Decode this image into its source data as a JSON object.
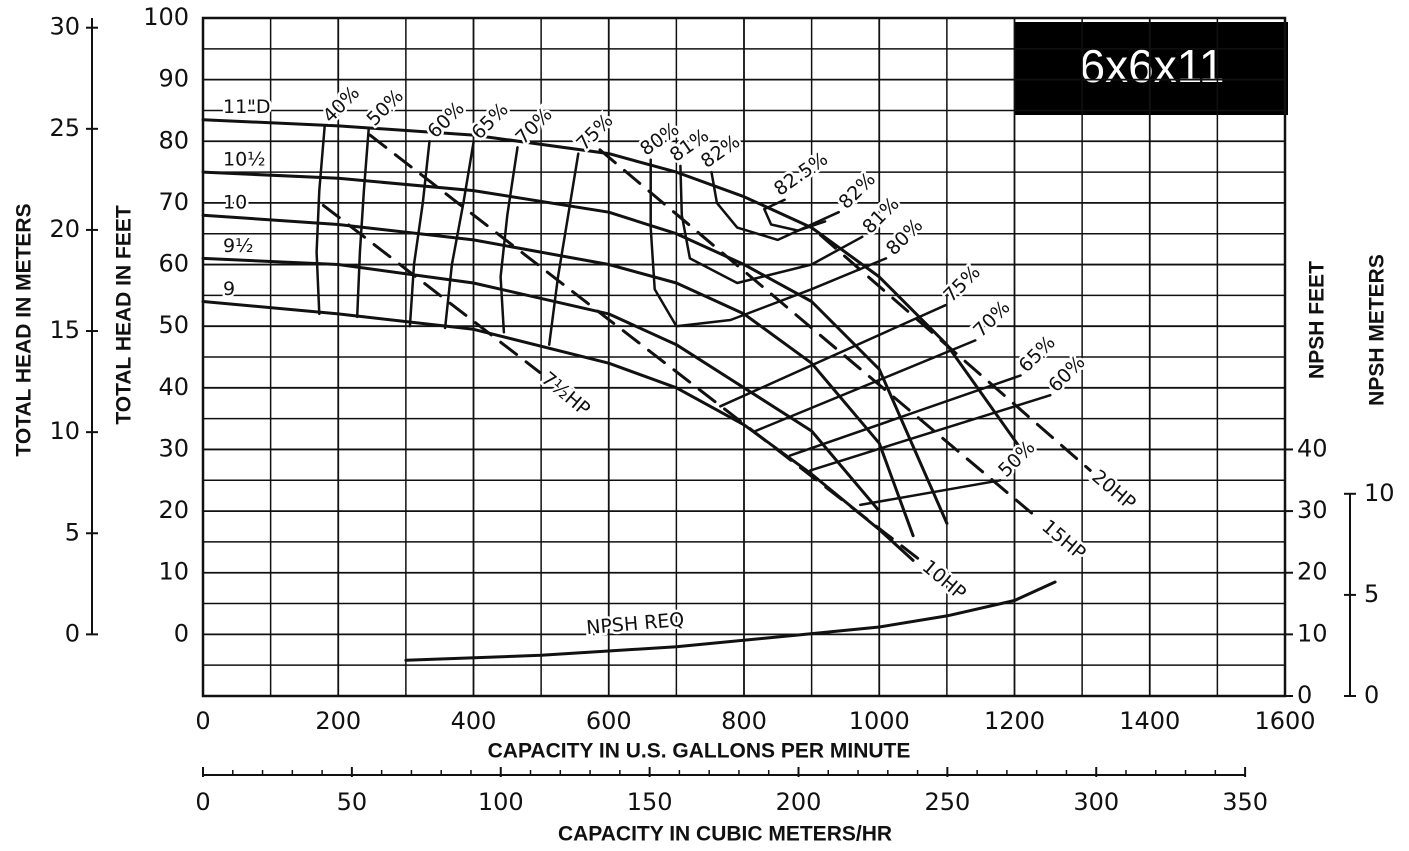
{
  "chart_data": {
    "type": "line",
    "title": "6x6x11",
    "color": "#111111",
    "xlabel": "CAPACITY IN U.S. GALLONS PER MINUTE",
    "ylabel": "TOTAL HEAD IN FEET",
    "xlim": [
      0,
      1600
    ],
    "xticks": [
      0,
      200,
      400,
      600,
      800,
      1000,
      1200,
      1400,
      1600
    ],
    "xgrid": [
      100,
      300,
      500,
      700,
      900,
      1100,
      1300,
      1500
    ],
    "ylim": [
      -10,
      100
    ],
    "yticks": [
      0,
      10,
      20,
      30,
      40,
      50,
      60,
      70,
      80,
      90,
      100
    ],
    "ygrid": [
      -5,
      5,
      15,
      25,
      35,
      45,
      55,
      65,
      75,
      85,
      95
    ],
    "grid": true,
    "y_meters": {
      "label": "TOTAL HEAD IN METERS",
      "lim": [
        -3.048,
        30.48
      ],
      "ticks": [
        0,
        5,
        10,
        15,
        20,
        25,
        30
      ]
    },
    "npsh_feet": {
      "label": "NPSH FEET",
      "lim": [
        0,
        110
      ],
      "ticks": [
        0,
        10,
        20,
        30,
        40
      ]
    },
    "npsh_meters": {
      "label": "NPSH METERS",
      "lim": [
        0,
        33.53
      ],
      "ticks": [
        0,
        5,
        10
      ]
    },
    "x2": {
      "label": "CAPACITY IN CUBIC METERS/HR",
      "lim": [
        0,
        363.4
      ],
      "ticks": [
        0,
        50,
        100,
        150,
        200,
        250,
        300,
        350
      ],
      "minor": [
        10,
        20,
        30,
        40,
        60,
        70,
        80,
        90,
        110,
        120,
        130,
        140,
        160,
        170,
        180,
        190,
        210,
        220,
        230,
        240,
        260,
        270,
        280,
        290,
        310,
        320,
        330,
        340
      ]
    },
    "diameters": [
      {
        "name": "11\"D",
        "x": [
          0,
          200,
          400,
          600,
          700,
          800,
          900,
          1000,
          1100,
          1210
        ],
        "values": [
          83.5,
          82.5,
          81,
          78,
          75,
          71,
          66,
          58,
          47,
          30
        ]
      },
      {
        "name": "10½",
        "x": [
          0,
          200,
          400,
          600,
          700,
          800,
          900,
          1000,
          1100
        ],
        "values": [
          75,
          74,
          72,
          68.5,
          65,
          60,
          54,
          43,
          18
        ]
      },
      {
        "name": "10",
        "x": [
          0,
          200,
          400,
          600,
          700,
          800,
          900,
          1000,
          1050
        ],
        "values": [
          68,
          66.5,
          64,
          60,
          57,
          52,
          44,
          31,
          16
        ]
      },
      {
        "name": "9½",
        "x": [
          0,
          200,
          400,
          600,
          700,
          800,
          900,
          1000
        ],
        "values": [
          61,
          60,
          57,
          52,
          47,
          40,
          33,
          20
        ]
      },
      {
        "name": "9",
        "x": [
          0,
          200,
          400,
          600,
          700,
          800,
          900,
          1000,
          1050
        ],
        "values": [
          54,
          52,
          49.5,
          44,
          40,
          34,
          26,
          17,
          12
        ]
      }
    ],
    "efficiency": [
      {
        "name": "40%",
        "x": [
          180,
          172,
          168,
          172
        ],
        "values": [
          82.5,
          72,
          62,
          52
        ]
      },
      {
        "name": "50%",
        "x": [
          245,
          238,
          232,
          228
        ],
        "values": [
          82,
          72,
          62,
          51.5
        ]
      },
      {
        "name": "60%",
        "x": [
          335,
          325,
          312,
          306
        ],
        "values": [
          80,
          70,
          60,
          50
        ]
      },
      {
        "name": "65%",
        "x": [
          400,
          385,
          368,
          358
        ],
        "values": [
          79.8,
          70,
          60,
          49.7
        ]
      },
      {
        "name": "70%",
        "x": [
          465,
          450,
          440,
          445
        ],
        "values": [
          79,
          68,
          58,
          49
        ]
      },
      {
        "name": "75%",
        "x": [
          555,
          540,
          525,
          512
        ],
        "values": [
          78,
          68,
          58,
          47
        ]
      },
      {
        "name": "80%",
        "x": [
          662,
          662,
          668,
          700,
          780,
          900,
          1010
        ],
        "values": [
          77,
          66,
          56,
          50,
          51,
          56,
          61
        ]
      },
      {
        "name": "81%",
        "x": [
          706,
          708,
          720,
          790,
          900,
          975
        ],
        "values": [
          76,
          68,
          61,
          57,
          60,
          64.5
        ]
      },
      {
        "name": "82%",
        "x": [
          752,
          760,
          790,
          850,
          940
        ],
        "values": [
          75,
          70,
          66,
          64,
          68.5
        ]
      },
      {
        "name": "82.5%",
        "x": [
          860,
          830,
          840,
          880,
          920
        ],
        "values": [
          70.5,
          69,
          66.5,
          65.5,
          67
        ]
      },
      {
        "name": "75%",
        "x": [
          1098,
          765
        ],
        "values": [
          53.4,
          37
        ]
      },
      {
        "name": "70%",
        "x": [
          1142,
          817
        ],
        "values": [
          47.7,
          33
        ]
      },
      {
        "name": "65%",
        "x": [
          1209,
          868
        ],
        "values": [
          42,
          29
        ]
      },
      {
        "name": "60%",
        "x": [
          1253,
          898
        ],
        "values": [
          38.8,
          26.6
        ]
      },
      {
        "name": "50%",
        "x": [
          1179,
          972
        ],
        "values": [
          25,
          21
        ]
      }
    ],
    "horsepower": [
      {
        "name": "7½HP",
        "x": [
          178,
          498
        ],
        "values": [
          69.6,
          42.5
        ]
      },
      {
        "name": "10HP",
        "x": [
          247,
          1061
        ],
        "values": [
          81,
          12
        ]
      },
      {
        "name": "15HP",
        "x": [
          587,
          1238
        ],
        "values": [
          78.6,
          18.5
        ]
      },
      {
        "name": "20HP",
        "x": [
          913,
          1312
        ],
        "values": [
          64.8,
          26.6
        ]
      }
    ],
    "npsh": {
      "name": "NPSH REQ",
      "x": [
        300,
        500,
        700,
        880,
        1000,
        1100,
        1200,
        1260
      ],
      "values": [
        5.8,
        6.6,
        8,
        9.9,
        11.2,
        13,
        15.5,
        18.5
      ]
    }
  }
}
